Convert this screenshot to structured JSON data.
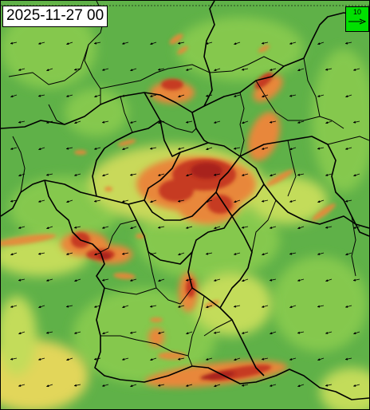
{
  "header": {
    "timestamp": "2025-11-27 00"
  },
  "legend": {
    "reference_speed_label": "10",
    "arrow_icon": "right-arrow-icon"
  },
  "colors": {
    "background_green": "#5fb148",
    "light_green": "#8ccd4f",
    "yellow_green": "#c3dc5a",
    "yellow": "#e8d85c",
    "orange": "#e8873a",
    "red_orange": "#d9552b",
    "dark_red": "#a8231c",
    "border": "#000000",
    "legend_green": "#00e000"
  }
}
